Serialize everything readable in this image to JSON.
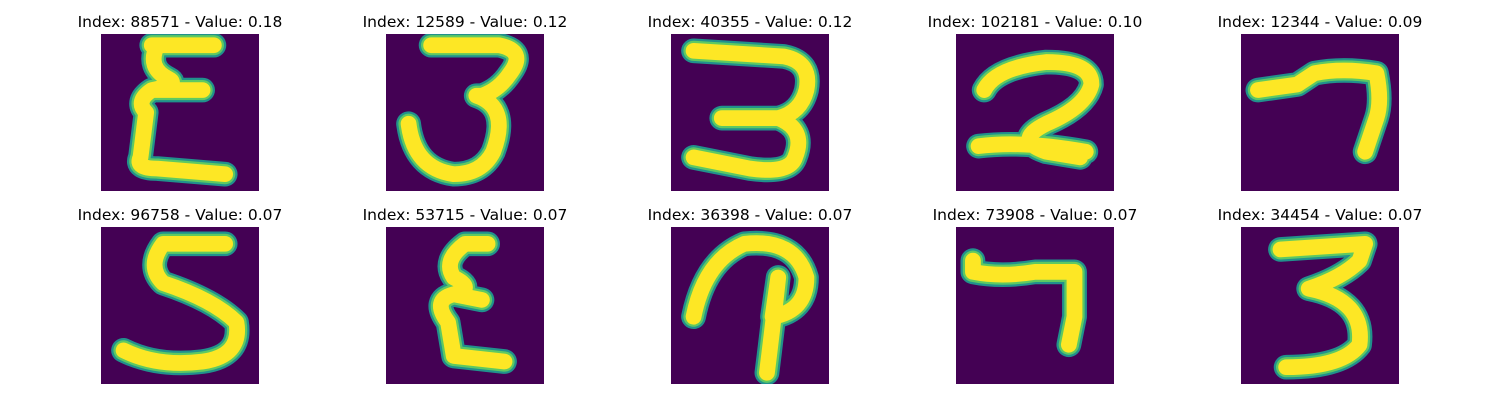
{
  "colors": {
    "background": "#440154",
    "stroke_edge": "#21918c",
    "stroke_mid": "#5ec962",
    "stroke_core": "#fde725"
  },
  "panels": [
    {
      "title": "Index: 88571 - Value: 0.18",
      "glyph": "epsilon"
    },
    {
      "title": "Index: 12589 - Value: 0.12",
      "glyph": "three-curly"
    },
    {
      "title": "Index: 40355 - Value: 0.12",
      "glyph": "three-reversed"
    },
    {
      "title": "Index: 102181 - Value: 0.10",
      "glyph": "two"
    },
    {
      "title": "Index: 12344 - Value: 0.09",
      "glyph": "seven-hook"
    },
    {
      "title": "Index: 96758 - Value: 0.07",
      "glyph": "five"
    },
    {
      "title": "Index: 53715 - Value: 0.07",
      "glyph": "epsilon"
    },
    {
      "title": "Index: 36398 - Value: 0.07",
      "glyph": "p-loop"
    },
    {
      "title": "Index: 73908 - Value: 0.07",
      "glyph": "seven"
    },
    {
      "title": "Index: 34454 - Value: 0.07",
      "glyph": "three"
    }
  ]
}
